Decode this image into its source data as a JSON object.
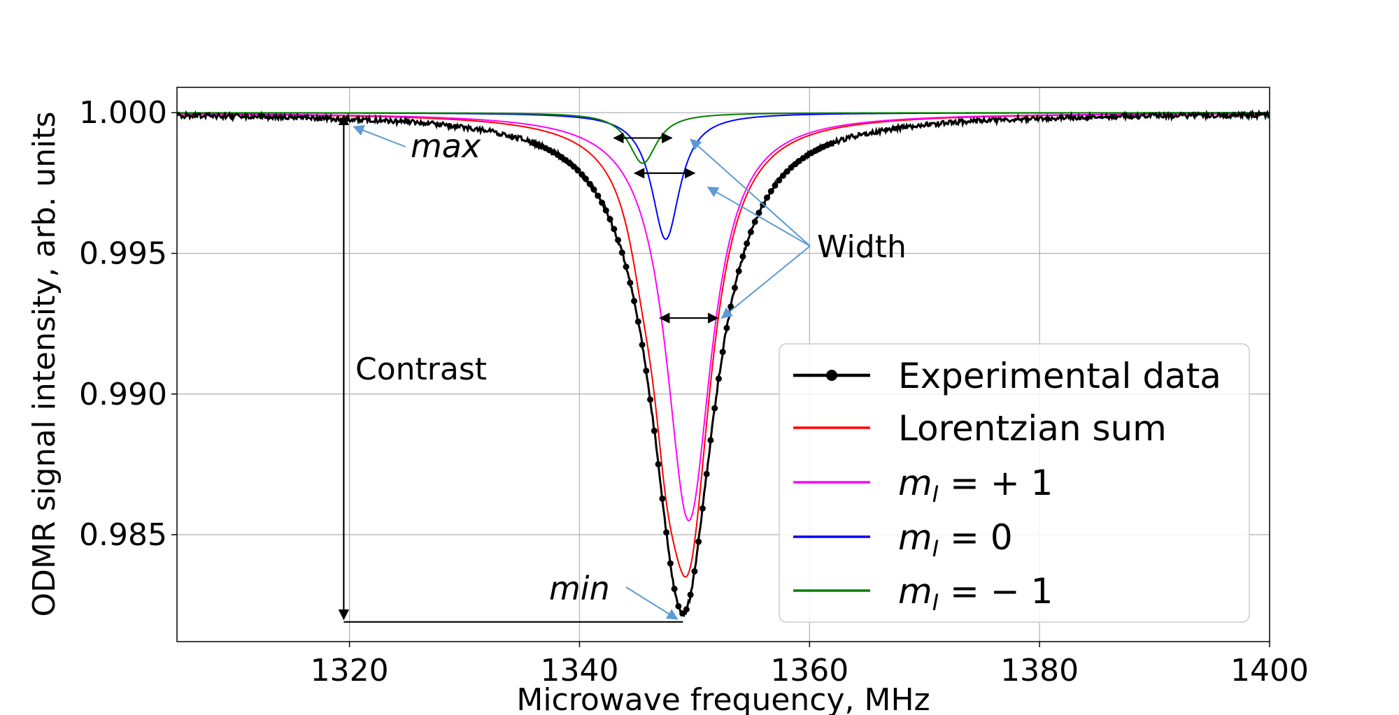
{
  "chart_data": {
    "type": "line",
    "xlabel": "Microwave frequency, MHz",
    "ylabel": "ODMR signal intensity, arb. units",
    "xlim": [
      1305,
      1400
    ],
    "ylim": [
      0.9812,
      1.0009
    ],
    "xticks": [
      1320,
      1340,
      1360,
      1380,
      1400
    ],
    "xtick_labels": [
      "1320",
      "1340",
      "1360",
      "1380",
      "1400"
    ],
    "yticks": [
      0.985,
      0.99,
      0.995,
      1.0
    ],
    "ytick_labels": [
      "0.985",
      "0.990",
      "0.995",
      "1.000"
    ],
    "grid": true,
    "legend_position": "lower-right",
    "baseline": 1.0,
    "series": [
      {
        "key": "exp",
        "name": "Experimental data",
        "color": "#000000",
        "marker": "dot",
        "components": [
          {
            "center": 1349,
            "depth": 0.0178,
            "hwhm": 3.3
          }
        ]
      },
      {
        "key": "sum",
        "name": "Lorentzian sum",
        "color": "#ff0000",
        "marker": "none",
        "components": [
          {
            "center": 1349.5,
            "depth": 0.0145,
            "hwhm": 2.4
          },
          {
            "center": 1347.5,
            "depth": 0.0045,
            "hwhm": 1.5
          },
          {
            "center": 1345.5,
            "depth": 0.0018,
            "hwhm": 1.5
          }
        ]
      },
      {
        "key": "mp1",
        "name": "m_I = +1",
        "color": "#ff00ff",
        "marker": "none",
        "components": [
          {
            "center": 1349.5,
            "depth": 0.0145,
            "hwhm": 2.4
          }
        ]
      },
      {
        "key": "m0",
        "name": "m_I = 0",
        "color": "#0000ff",
        "marker": "none",
        "components": [
          {
            "center": 1347.5,
            "depth": 0.0045,
            "hwhm": 1.5
          }
        ]
      },
      {
        "key": "mm1",
        "name": "m_I = −1",
        "color": "#008000",
        "marker": "none",
        "components": [
          {
            "center": 1345.5,
            "depth": 0.0018,
            "hwhm": 1.5
          }
        ]
      }
    ],
    "legend": [
      {
        "key": "exp",
        "label": "Experimental data",
        "color": "#000000"
      },
      {
        "key": "sum",
        "label": "Lorentzian sum",
        "color": "#ff0000"
      },
      {
        "key": "mp1",
        "label_main": "m",
        "label_sub": "I",
        "label_rest": " = + 1",
        "color": "#ff00ff"
      },
      {
        "key": "m0",
        "label_main": "m",
        "label_sub": "I",
        "label_rest": " = 0",
        "color": "#0000ff"
      },
      {
        "key": "mm1",
        "label_main": "m",
        "label_sub": "I",
        "label_rest": " = − 1",
        "color": "#008000"
      }
    ],
    "annotations": {
      "max_label": "max",
      "min_label": "min",
      "contrast_label": "Contrast",
      "width_label": "Width",
      "arrow_color": "#5b9bd5",
      "contrast": {
        "x": 1319.5,
        "y_top": 1.0,
        "y_bottom": 0.9819,
        "bottom_line_to_x": 1349
      },
      "max_point": {
        "x": 1320,
        "y": 0.9996
      },
      "min_point": {
        "x": 1348.5,
        "y": 0.982
      },
      "width_arrows": [
        {
          "x1": 1343,
          "x2": 1348,
          "y": 0.9991
        },
        {
          "x1": 1344.8,
          "x2": 1350,
          "y": 0.99785
        },
        {
          "x1": 1347,
          "x2": 1352,
          "y": 0.9927
        }
      ]
    }
  }
}
